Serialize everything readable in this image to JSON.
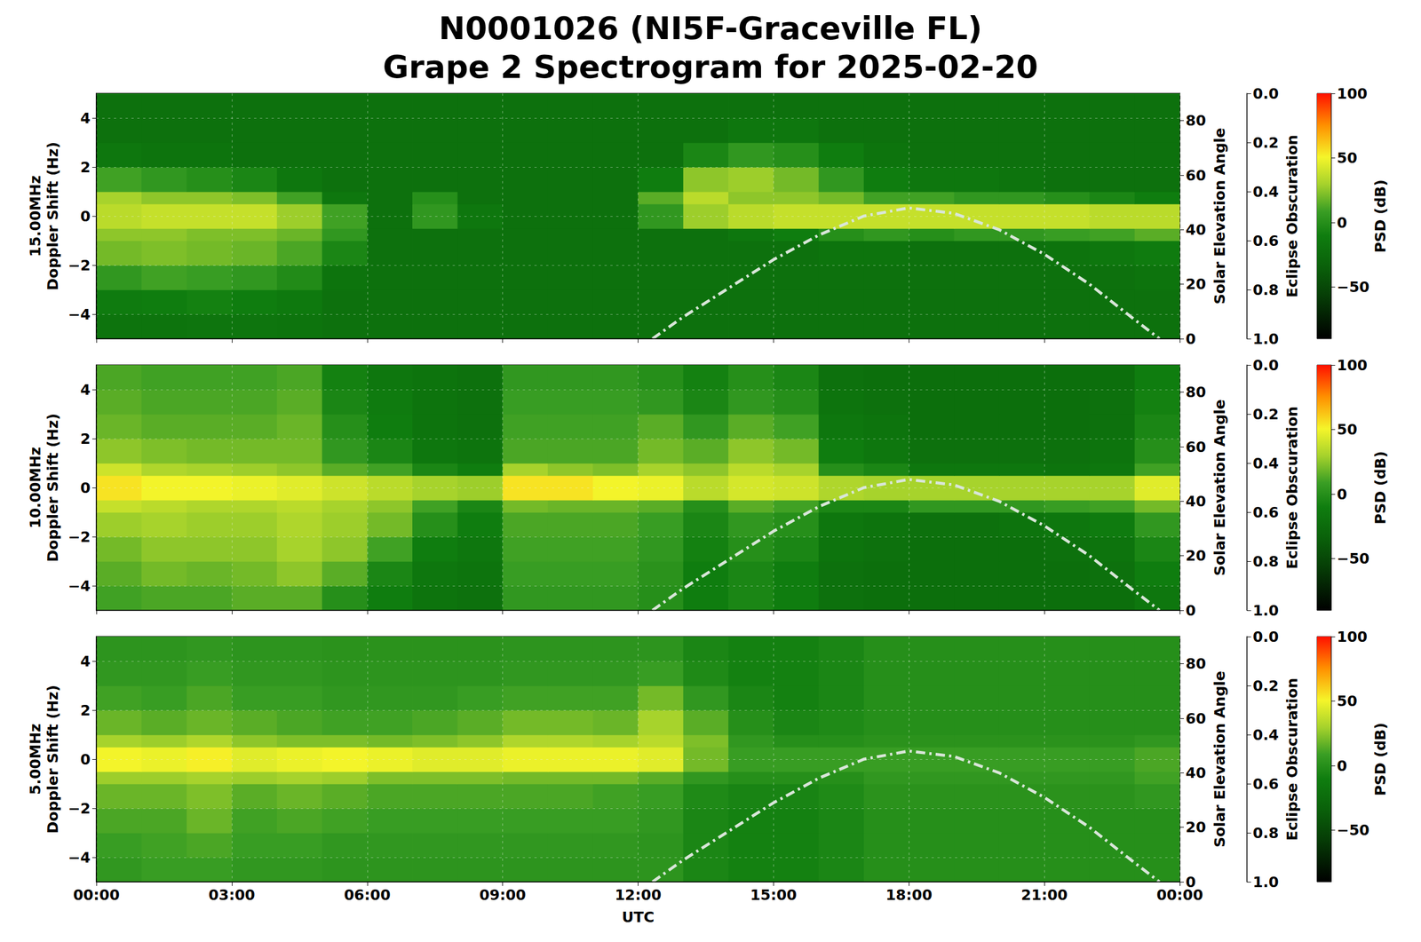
{
  "chart_data": {
    "type": "spectrogram",
    "title": "N0001026 (NI5F-Graceville FL)",
    "subtitle": "Grape 2 Spectrogram for 2025-02-20",
    "xlabel": "UTC",
    "xlim": [
      0,
      24
    ],
    "xticks": [
      {
        "value": 0,
        "label": "00:00"
      },
      {
        "value": 3,
        "label": "03:00"
      },
      {
        "value": 6,
        "label": "06:00"
      },
      {
        "value": 9,
        "label": "09:00"
      },
      {
        "value": 12,
        "label": "12:00"
      },
      {
        "value": 15,
        "label": "15:00"
      },
      {
        "value": 18,
        "label": "18:00"
      },
      {
        "value": 21,
        "label": "21:00"
      },
      {
        "value": 24,
        "label": "00:00"
      }
    ],
    "ylabel": "Doppler Shift (Hz)",
    "ylim": [
      -5,
      5
    ],
    "yticks": [
      {
        "value": -4,
        "label": "−4"
      },
      {
        "value": -2,
        "label": "−2"
      },
      0,
      2,
      4
    ],
    "y2label": "Solar Elevation Angle",
    "y2lim": [
      0,
      90
    ],
    "y2ticks": [
      0,
      20,
      40,
      60,
      80
    ],
    "eclipse_axis": {
      "label": "Eclipse Obscuration",
      "lim": [
        1,
        0
      ],
      "ticks": [
        {
          "value": 0,
          "label": "0.0"
        },
        {
          "value": 0.2,
          "label": "0.2"
        },
        {
          "value": 0.4,
          "label": "0.4"
        },
        {
          "value": 0.6,
          "label": "0.6"
        },
        {
          "value": 0.8,
          "label": "0.8"
        },
        {
          "value": 1,
          "label": "1.0"
        }
      ]
    },
    "colorbar": {
      "label": "PSD (dB)",
      "lim": [
        -90,
        100
      ],
      "ticks": [
        {
          "value": -50,
          "label": "−50"
        },
        0,
        50,
        100
      ]
    },
    "grid": true,
    "time_edges": [
      0,
      1,
      2,
      3,
      4,
      5,
      6,
      7,
      8,
      9,
      10,
      11,
      12,
      13,
      14,
      15,
      16,
      17,
      18,
      19,
      20,
      21,
      22,
      23,
      24
    ],
    "doppler_edges": [
      -5,
      -4,
      -3,
      -2,
      -1,
      -0.5,
      0.5,
      1,
      2,
      3,
      4,
      5
    ],
    "solar_elevation": {
      "axis": "y2",
      "color": "#d9e6d9",
      "line_style": "dashdot",
      "x": [
        12.32,
        13,
        14,
        15,
        16,
        17,
        18,
        19,
        20,
        21,
        22,
        23,
        23.55
      ],
      "values": [
        0,
        8,
        18.5,
        29,
        38,
        45,
        48,
        46,
        40,
        31,
        20,
        7,
        0
      ]
    },
    "panels": [
      {
        "label": "15.00MHz",
        "psd": [
          [
            -18,
            -18,
            -17,
            -17,
            -18,
            -20,
            -20,
            -20,
            -20,
            -20,
            -20,
            -20,
            -20,
            -20,
            -20,
            -20,
            -20,
            -20,
            -20,
            -20,
            -20,
            -20,
            -20,
            -20
          ],
          [
            -12,
            -10,
            -8,
            -10,
            -14,
            -20,
            -20,
            -20,
            -20,
            -20,
            -20,
            -20,
            -20,
            -20,
            -20,
            -20,
            -20,
            -20,
            -20,
            -20,
            -20,
            -20,
            -20,
            -20
          ],
          [
            5,
            10,
            8,
            5,
            -2,
            -18,
            -20,
            -20,
            -20,
            -20,
            -20,
            -20,
            -20,
            -20,
            -20,
            -20,
            -20,
            -20,
            -20,
            -20,
            -20,
            -20,
            -20,
            -18
          ],
          [
            20,
            22,
            20,
            18,
            12,
            -5,
            -20,
            -20,
            -20,
            -20,
            -20,
            -20,
            -20,
            -20,
            -20,
            -20,
            -18,
            -18,
            -20,
            -20,
            -20,
            -18,
            -15,
            -12
          ],
          [
            25,
            25,
            22,
            22,
            18,
            5,
            -20,
            -20,
            -20,
            -20,
            -20,
            -20,
            -20,
            -20,
            -15,
            -10,
            0,
            5,
            0,
            5,
            5,
            8,
            10,
            15
          ],
          [
            35,
            38,
            38,
            38,
            28,
            10,
            -20,
            5,
            -15,
            -20,
            -20,
            -20,
            5,
            28,
            35,
            38,
            38,
            38,
            38,
            38,
            38,
            38,
            35,
            35
          ],
          [
            30,
            25,
            25,
            22,
            10,
            -15,
            -20,
            0,
            -20,
            -20,
            -20,
            -20,
            15,
            35,
            25,
            25,
            20,
            10,
            10,
            5,
            5,
            0,
            -5,
            -10
          ],
          [
            10,
            5,
            0,
            -5,
            -15,
            -20,
            -20,
            -20,
            -20,
            -20,
            -20,
            -20,
            -10,
            25,
            28,
            20,
            5,
            -10,
            -15,
            -15,
            -18,
            -20,
            -20,
            -20
          ],
          [
            -15,
            -18,
            -18,
            -20,
            -20,
            -20,
            -20,
            -20,
            -20,
            -20,
            -20,
            -20,
            -20,
            -5,
            5,
            0,
            -10,
            -18,
            -20,
            -20,
            -20,
            -20,
            -20,
            -20
          ],
          [
            -20,
            -20,
            -20,
            -20,
            -20,
            -20,
            -20,
            -20,
            -20,
            -20,
            -20,
            -20,
            -20,
            -20,
            -15,
            -15,
            -20,
            -20,
            -20,
            -20,
            -20,
            -20,
            -20,
            -20
          ],
          [
            -20,
            -20,
            -20,
            -20,
            -20,
            -20,
            -20,
            -20,
            -20,
            -20,
            -20,
            -20,
            -20,
            -20,
            -20,
            -20,
            -20,
            -20,
            -20,
            -20,
            -20,
            -20,
            -20,
            -20
          ]
        ]
      },
      {
        "label": "10.00MHz",
        "psd": [
          [
            10,
            12,
            12,
            15,
            15,
            0,
            -10,
            -18,
            -20,
            5,
            5,
            5,
            0,
            -10,
            -5,
            -10,
            -20,
            -22,
            -22,
            -22,
            -22,
            -22,
            -22,
            -15
          ],
          [
            15,
            20,
            18,
            20,
            25,
            15,
            -5,
            -15,
            -18,
            8,
            8,
            8,
            2,
            -10,
            -5,
            -10,
            -20,
            -22,
            -22,
            -22,
            -22,
            -22,
            -20,
            -10
          ],
          [
            20,
            25,
            25,
            25,
            30,
            25,
            10,
            -10,
            -15,
            10,
            10,
            10,
            5,
            -8,
            0,
            -5,
            -18,
            -20,
            -22,
            -22,
            -22,
            -20,
            -18,
            -5
          ],
          [
            28,
            30,
            28,
            28,
            32,
            28,
            20,
            0,
            -10,
            12,
            12,
            12,
            8,
            -5,
            5,
            0,
            -15,
            -18,
            -20,
            -20,
            -18,
            -15,
            -12,
            5
          ],
          [
            38,
            35,
            32,
            32,
            35,
            30,
            25,
            10,
            -5,
            20,
            18,
            18,
            15,
            0,
            15,
            10,
            -5,
            -5,
            5,
            5,
            5,
            8,
            10,
            20
          ],
          [
            55,
            50,
            50,
            48,
            45,
            40,
            35,
            30,
            28,
            55,
            55,
            50,
            48,
            35,
            42,
            40,
            32,
            30,
            30,
            30,
            30,
            30,
            30,
            45
          ],
          [
            40,
            32,
            30,
            28,
            25,
            15,
            10,
            -5,
            -10,
            30,
            25,
            22,
            30,
            25,
            35,
            30,
            0,
            -5,
            -15,
            -15,
            -15,
            -18,
            -15,
            10
          ],
          [
            25,
            22,
            20,
            20,
            20,
            5,
            -5,
            -15,
            -18,
            12,
            12,
            12,
            20,
            15,
            25,
            20,
            -10,
            -15,
            -20,
            -20,
            -20,
            -20,
            -18,
            0
          ],
          [
            18,
            15,
            15,
            15,
            18,
            0,
            -10,
            -18,
            -20,
            10,
            10,
            10,
            15,
            5,
            15,
            10,
            -15,
            -18,
            -22,
            -22,
            -22,
            -22,
            -20,
            -5
          ],
          [
            15,
            12,
            12,
            12,
            15,
            -5,
            -12,
            -18,
            -20,
            8,
            8,
            8,
            5,
            -5,
            5,
            0,
            -18,
            -20,
            -22,
            -22,
            -22,
            -22,
            -20,
            -8
          ],
          [
            12,
            10,
            10,
            10,
            12,
            -8,
            -15,
            -18,
            -20,
            5,
            5,
            5,
            0,
            -8,
            0,
            -5,
            -20,
            -22,
            -22,
            -22,
            -22,
            -22,
            -22,
            -10
          ]
        ]
      },
      {
        "label": "5.00MHz",
        "psd": [
          [
            5,
            8,
            8,
            5,
            5,
            3,
            3,
            3,
            3,
            3,
            3,
            3,
            3,
            -5,
            -8,
            -8,
            -5,
            0,
            0,
            0,
            0,
            0,
            0,
            0
          ],
          [
            8,
            10,
            12,
            8,
            8,
            5,
            5,
            5,
            5,
            5,
            5,
            5,
            3,
            -5,
            -8,
            -8,
            -5,
            0,
            0,
            0,
            0,
            0,
            0,
            0
          ],
          [
            12,
            12,
            18,
            10,
            12,
            10,
            8,
            8,
            8,
            8,
            8,
            8,
            5,
            -5,
            -8,
            -8,
            -5,
            0,
            0,
            0,
            0,
            0,
            0,
            0
          ],
          [
            18,
            18,
            22,
            15,
            18,
            15,
            12,
            12,
            12,
            12,
            12,
            10,
            8,
            -3,
            -6,
            -6,
            -3,
            2,
            2,
            2,
            2,
            2,
            2,
            5
          ],
          [
            28,
            28,
            30,
            28,
            30,
            28,
            22,
            22,
            22,
            20,
            20,
            20,
            15,
            5,
            0,
            0,
            0,
            5,
            5,
            5,
            5,
            5,
            5,
            10
          ],
          [
            50,
            48,
            52,
            45,
            48,
            50,
            48,
            45,
            45,
            48,
            48,
            48,
            45,
            20,
            8,
            8,
            8,
            8,
            8,
            8,
            8,
            8,
            8,
            12
          ],
          [
            30,
            28,
            32,
            25,
            22,
            22,
            20,
            22,
            25,
            32,
            32,
            30,
            35,
            22,
            5,
            0,
            0,
            2,
            2,
            2,
            2,
            2,
            2,
            5
          ],
          [
            18,
            15,
            18,
            15,
            12,
            10,
            10,
            12,
            15,
            20,
            20,
            18,
            30,
            15,
            0,
            -5,
            -3,
            0,
            0,
            0,
            0,
            0,
            0,
            0
          ],
          [
            10,
            8,
            12,
            8,
            8,
            5,
            5,
            5,
            8,
            10,
            10,
            10,
            20,
            5,
            -5,
            -8,
            -5,
            0,
            0,
            0,
            0,
            0,
            0,
            0
          ],
          [
            5,
            5,
            8,
            5,
            5,
            3,
            3,
            3,
            3,
            5,
            5,
            5,
            8,
            -3,
            -8,
            -8,
            -5,
            0,
            0,
            0,
            0,
            0,
            0,
            0
          ],
          [
            3,
            3,
            5,
            3,
            3,
            2,
            2,
            2,
            2,
            3,
            3,
            3,
            3,
            -5,
            -8,
            -8,
            -5,
            0,
            0,
            0,
            0,
            0,
            0,
            0
          ]
        ]
      }
    ]
  }
}
